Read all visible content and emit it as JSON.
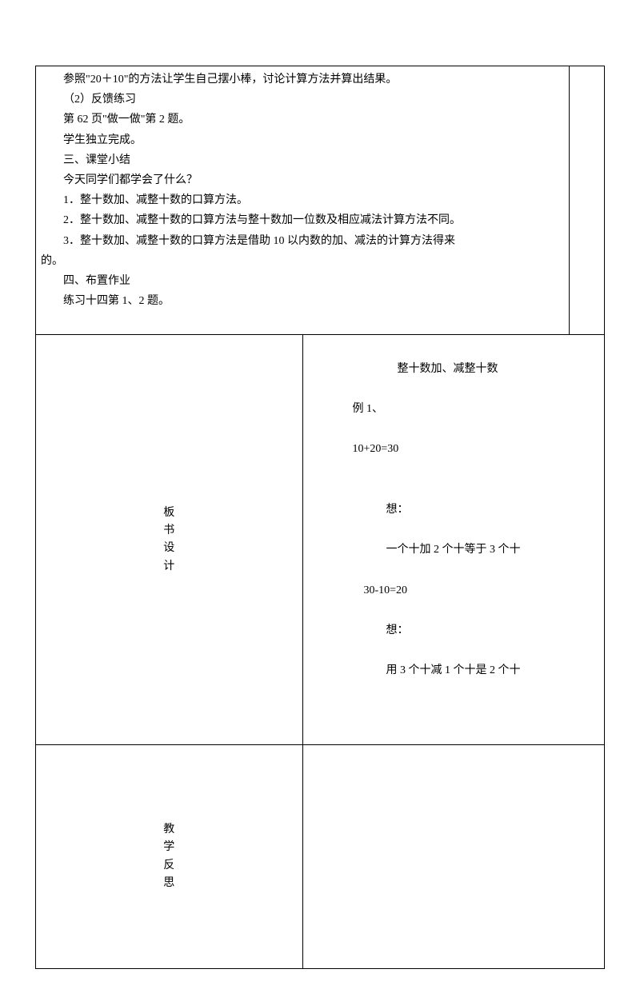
{
  "row1": {
    "lines": [
      "参照\"20＋10\"的方法让学生自己摆小棒，讨论计算方法并算出结果。",
      "（2）反馈练习",
      "第 62 页\"做一做\"第 2 题。",
      "学生独立完成。",
      "三、课堂小结",
      "今天同学们都学会了什么？",
      "1．整十数加、减整十数的口算方法。",
      "2．整十数加、减整十数的口算方法与整十数加一位数及相应减法计算方法不同。",
      "",
      "3．整十数加、减整十数的口算方法是借助 10 以内数的加、减法的计算方法得来",
      "的。",
      "四、布置作业",
      "练习十四第 1、2 题。"
    ]
  },
  "row2": {
    "label": "板书设计",
    "title": "整十数加、减整十数",
    "example_label": "例 1、",
    "equation1": "10+20=30",
    "think1_label": "想：",
    "think1_text": "一个十加 2 个十等于 3 个十",
    "equation2": "30-10=20",
    "think2_label": "想：",
    "think2_text": "用 3 个十减 1 个十是 2 个十"
  },
  "row3": {
    "label": "教学反思"
  }
}
